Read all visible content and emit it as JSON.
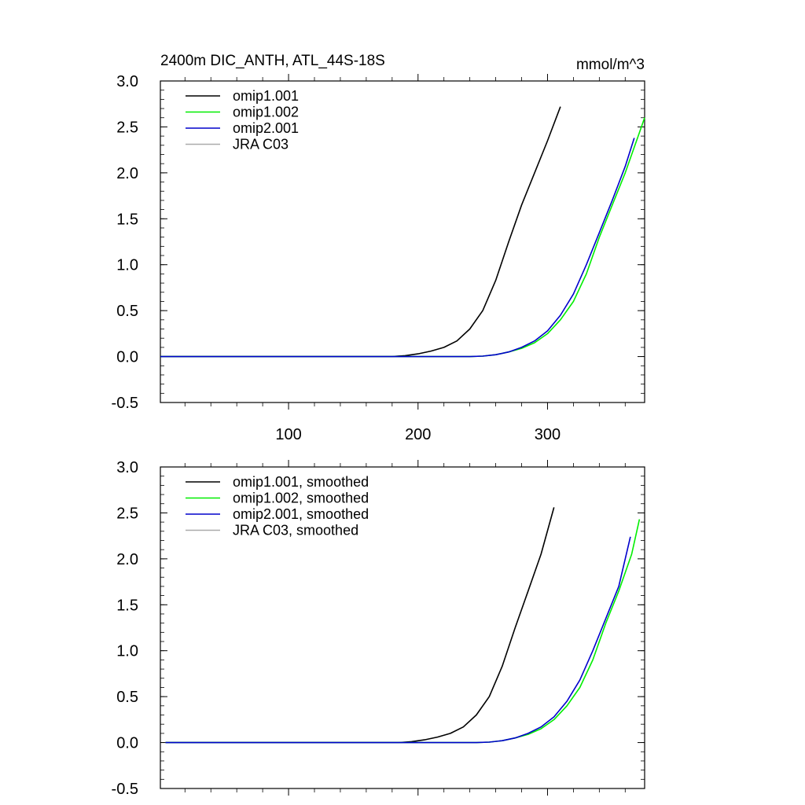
{
  "chart_data": [
    {
      "type": "line",
      "title": "2400m DIC_ANTH, ATL_44S-18S",
      "units": "mmol/m^3",
      "xlim": [
        1,
        375
      ],
      "ylim": [
        -0.5,
        3.0
      ],
      "x_ticks": [
        100,
        200,
        300
      ],
      "x_tick_labels_shown": true,
      "y_ticks": [
        -0.5,
        0.0,
        0.5,
        1.0,
        1.5,
        2.0,
        2.5,
        3.0
      ],
      "y_tick_labels": [
        "-0.5",
        "0.0",
        "0.5",
        "1.0",
        "1.5",
        "2.0",
        "2.5",
        "3.0"
      ],
      "grid": false,
      "legend_position": "top-left",
      "series": [
        {
          "name": "omip1.001",
          "color": "#000000",
          "x": [
            1,
            180,
            190,
            200,
            210,
            220,
            230,
            240,
            250,
            260,
            270,
            280,
            290,
            300,
            310
          ],
          "values": [
            0,
            0,
            0.01,
            0.03,
            0.06,
            0.1,
            0.17,
            0.3,
            0.5,
            0.83,
            1.25,
            1.65,
            2.0,
            2.35,
            2.72
          ]
        },
        {
          "name": "omip1.002",
          "color": "#00ee00",
          "x": [
            1,
            240,
            250,
            260,
            270,
            280,
            290,
            300,
            310,
            320,
            330,
            340,
            350,
            360,
            370,
            375
          ],
          "values": [
            0,
            0,
            0.005,
            0.02,
            0.05,
            0.09,
            0.15,
            0.25,
            0.4,
            0.6,
            0.9,
            1.3,
            1.65,
            2.0,
            2.4,
            2.6
          ]
        },
        {
          "name": "omip2.001",
          "color": "#0000cc",
          "x": [
            1,
            240,
            250,
            260,
            270,
            280,
            290,
            300,
            310,
            320,
            330,
            340,
            350,
            360,
            367
          ],
          "values": [
            0,
            0,
            0.005,
            0.02,
            0.05,
            0.1,
            0.17,
            0.28,
            0.45,
            0.68,
            1.0,
            1.35,
            1.7,
            2.07,
            2.38
          ]
        },
        {
          "name": "JRA C03",
          "color": "#aaaaaa",
          "x": [],
          "values": []
        }
      ]
    },
    {
      "type": "line",
      "title": "",
      "units": "",
      "xlim": [
        1,
        375
      ],
      "ylim": [
        -0.5,
        3.0
      ],
      "x_ticks": [
        100,
        200,
        300
      ],
      "x_tick_labels_shown": false,
      "y_ticks": [
        -0.5,
        0.0,
        0.5,
        1.0,
        1.5,
        2.0,
        2.5,
        3.0
      ],
      "y_tick_labels": [
        "-0.5",
        "0.0",
        "0.5",
        "1.0",
        "1.5",
        "2.0",
        "2.5",
        "3.0"
      ],
      "grid": false,
      "legend_position": "top-left",
      "series": [
        {
          "name": "omip1.001, smoothed",
          "color": "#000000",
          "x": [
            5,
            185,
            195,
            205,
            215,
            225,
            235,
            245,
            255,
            265,
            275,
            285,
            295,
            305
          ],
          "values": [
            0,
            0,
            0.01,
            0.03,
            0.06,
            0.1,
            0.17,
            0.3,
            0.5,
            0.83,
            1.25,
            1.65,
            2.05,
            2.56
          ]
        },
        {
          "name": "omip1.002, smoothed",
          "color": "#00ee00",
          "x": [
            5,
            245,
            255,
            265,
            275,
            285,
            295,
            305,
            315,
            325,
            335,
            345,
            355,
            365,
            371
          ],
          "values": [
            0,
            0,
            0.005,
            0.02,
            0.05,
            0.09,
            0.15,
            0.25,
            0.4,
            0.6,
            0.9,
            1.3,
            1.65,
            2.05,
            2.43
          ]
        },
        {
          "name": "omip2.001, smoothed",
          "color": "#0000cc",
          "x": [
            5,
            245,
            255,
            265,
            275,
            285,
            295,
            305,
            315,
            325,
            335,
            345,
            355,
            364
          ],
          "values": [
            0,
            0,
            0.005,
            0.02,
            0.05,
            0.1,
            0.17,
            0.28,
            0.45,
            0.68,
            1.0,
            1.35,
            1.7,
            2.24
          ]
        },
        {
          "name": "JRA C03, smoothed",
          "color": "#aaaaaa",
          "x": [],
          "values": []
        }
      ]
    }
  ]
}
